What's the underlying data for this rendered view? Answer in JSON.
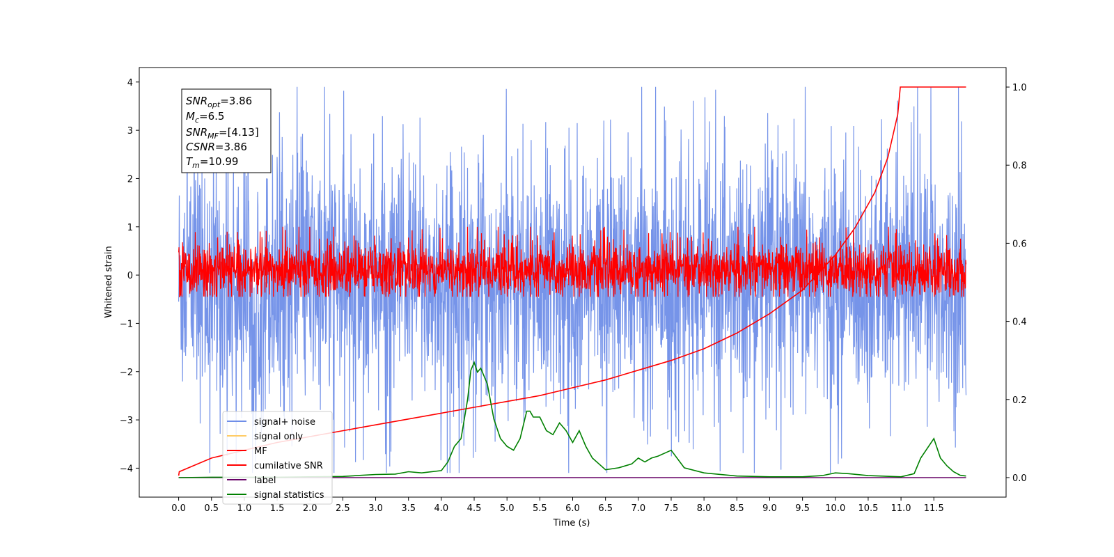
{
  "chart_data": {
    "type": "line",
    "xlabel": "Time (s)",
    "ylabel": "Whitened strain",
    "xlim": [
      -0.6,
      12.6
    ],
    "ylim_left": [
      -4.6,
      4.3
    ],
    "ylim_right": [
      -0.05,
      1.05
    ],
    "x_ticks": [
      "0.0",
      "0.5",
      "1.0",
      "1.5",
      "2.0",
      "2.5",
      "3.0",
      "3.5",
      "4.0",
      "4.5",
      "5.0",
      "5.5",
      "6.0",
      "6.5",
      "7.0",
      "7.5",
      "8.0",
      "8.5",
      "9.0",
      "9.5",
      "10.0",
      "10.5",
      "11.0",
      "11.5"
    ],
    "y_ticks_left": [
      "4",
      "3",
      "2",
      "1",
      "0",
      "−1",
      "−2",
      "−3",
      "−4"
    ],
    "y_ticks_right": [
      "1.0",
      "0.8",
      "0.6",
      "0.4",
      "0.2",
      "0.0"
    ],
    "annotation": {
      "snr_opt_base": "SNR",
      "snr_opt_sub": "opt",
      "snr_opt_val": "=3.86",
      "mc_base": "M",
      "mc_sub": "c",
      "mc_val": "=6.5",
      "snr_mf_base": "SNR",
      "snr_mf_sub": "MF",
      "snr_mf_val": "=[4.13]",
      "csnr_base": "CSNR",
      "csnr_val": "=3.86",
      "tm_base": "T",
      "tm_sub": "m",
      "tm_val": "=10.99"
    },
    "series": [
      {
        "name": "signal+ noise",
        "color": "#6f8ee8",
        "axis": "left",
        "kind": "noise",
        "t_range": [
          0.0,
          11.99
        ],
        "envelope": [
          -2.5,
          2.2
        ],
        "extremes": [
          -4.1,
          3.9
        ]
      },
      {
        "name": "signal only",
        "color": "#ffcc66",
        "axis": "left",
        "values": []
      },
      {
        "name": "MF",
        "color": "#ff0000",
        "axis": "left",
        "kind": "noise",
        "t_range": [
          0.0,
          11.99
        ],
        "envelope": [
          -0.4,
          0.6
        ],
        "extremes": [
          -0.45,
          1.0
        ]
      },
      {
        "name": "cumilative SNR",
        "color": "#ff0000",
        "axis": "right",
        "x": [
          0.0,
          0.01,
          0.5,
          1.0,
          1.5,
          2.0,
          2.5,
          3.0,
          3.5,
          4.0,
          4.5,
          5.0,
          5.5,
          6.0,
          6.5,
          7.0,
          7.5,
          8.0,
          8.5,
          9.0,
          9.5,
          10.0,
          10.3,
          10.6,
          10.8,
          10.95,
          10.99,
          11.5,
          11.99
        ],
        "y": [
          0.005,
          0.015,
          0.05,
          0.07,
          0.09,
          0.105,
          0.12,
          0.135,
          0.15,
          0.165,
          0.18,
          0.195,
          0.21,
          0.23,
          0.25,
          0.275,
          0.3,
          0.33,
          0.37,
          0.42,
          0.48,
          0.57,
          0.64,
          0.73,
          0.82,
          0.93,
          1.0,
          1.0,
          1.0
        ]
      },
      {
        "name": "label",
        "color": "#660066",
        "axis": "right",
        "x": [
          0.0,
          11.99
        ],
        "y": [
          0.0,
          0.0
        ]
      },
      {
        "name": "signal statistics",
        "color": "#008000",
        "axis": "right",
        "x": [
          0.0,
          0.5,
          1.0,
          1.5,
          2.0,
          2.5,
          2.8,
          3.0,
          3.3,
          3.5,
          3.7,
          4.0,
          4.1,
          4.2,
          4.3,
          4.4,
          4.45,
          4.5,
          4.55,
          4.6,
          4.7,
          4.8,
          4.9,
          5.0,
          5.1,
          5.2,
          5.3,
          5.35,
          5.4,
          5.5,
          5.6,
          5.7,
          5.8,
          5.9,
          6.0,
          6.1,
          6.2,
          6.3,
          6.5,
          6.7,
          6.9,
          7.0,
          7.1,
          7.2,
          7.3,
          7.5,
          7.7,
          8.0,
          8.5,
          9.0,
          9.5,
          9.8,
          10.0,
          10.2,
          10.5,
          11.0,
          11.2,
          11.3,
          11.5,
          11.6,
          11.7,
          11.8,
          11.9,
          11.99
        ],
        "y": [
          0.0,
          0.001,
          0.001,
          0.001,
          0.002,
          0.003,
          0.006,
          0.008,
          0.009,
          0.015,
          0.012,
          0.018,
          0.04,
          0.08,
          0.1,
          0.2,
          0.275,
          0.295,
          0.27,
          0.28,
          0.24,
          0.15,
          0.1,
          0.08,
          0.07,
          0.1,
          0.17,
          0.17,
          0.155,
          0.155,
          0.12,
          0.11,
          0.14,
          0.12,
          0.09,
          0.12,
          0.08,
          0.05,
          0.02,
          0.025,
          0.035,
          0.05,
          0.04,
          0.05,
          0.055,
          0.07,
          0.025,
          0.012,
          0.004,
          0.002,
          0.002,
          0.005,
          0.012,
          0.01,
          0.005,
          0.002,
          0.01,
          0.05,
          0.1,
          0.05,
          0.03,
          0.015,
          0.006,
          0.004
        ]
      }
    ],
    "legend": {
      "placement": "lower-left"
    }
  }
}
